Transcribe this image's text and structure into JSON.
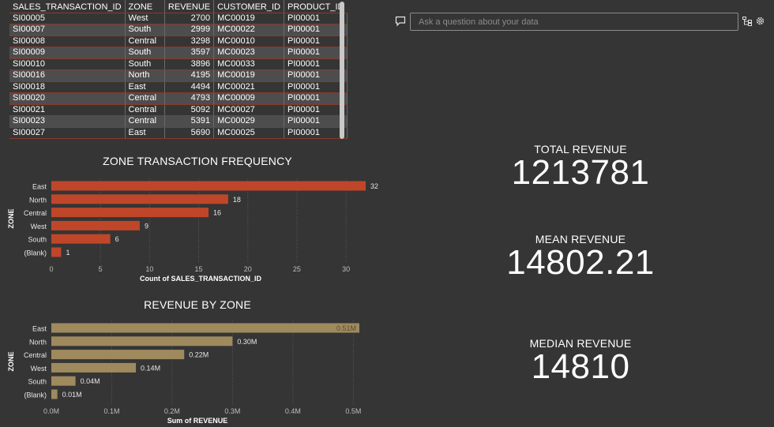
{
  "table": {
    "columns": [
      "SALES_TRANSACTION_ID",
      "ZONE",
      "REVENUE",
      "CUSTOMER_ID",
      "PRODUCT_ID"
    ],
    "rows": [
      [
        "SI00005",
        "West",
        "2700",
        "MC00019",
        "PI00001"
      ],
      [
        "SI00007",
        "South",
        "2999",
        "MC00022",
        "PI00001"
      ],
      [
        "SI00008",
        "Central",
        "3298",
        "MC00010",
        "PI00001"
      ],
      [
        "SI00009",
        "South",
        "3597",
        "MC00023",
        "PI00001"
      ],
      [
        "SI00010",
        "South",
        "3896",
        "MC00033",
        "PI00001"
      ],
      [
        "SI00016",
        "North",
        "4195",
        "MC00019",
        "PI00001"
      ],
      [
        "SI00018",
        "East",
        "4494",
        "MC00021",
        "PI00001"
      ],
      [
        "SI00020",
        "Central",
        "4793",
        "MC00009",
        "PI00001"
      ],
      [
        "SI00021",
        "Central",
        "5092",
        "MC00027",
        "PI00001"
      ],
      [
        "SI00023",
        "Central",
        "5391",
        "MC00029",
        "PI00001"
      ],
      [
        "SI00027",
        "East",
        "5690",
        "MC00025",
        "PI00001"
      ]
    ]
  },
  "qa": {
    "placeholder": "Ask a question about your data"
  },
  "kpis": {
    "total": {
      "label": "TOTAL REVENUE",
      "value": "1213781"
    },
    "mean": {
      "label": "MEAN REVENUE",
      "value": "14802.21"
    },
    "median": {
      "label": "MEDIAN REVENUE",
      "value": "14810"
    }
  },
  "chart_data": [
    {
      "type": "bar",
      "orientation": "horizontal",
      "title": "ZONE TRANSACTION FREQUENCY",
      "xlabel": "Count of SALES_TRANSACTION_ID",
      "ylabel": "ZONE",
      "categories": [
        "East",
        "North",
        "Central",
        "West",
        "South",
        "(Blank)"
      ],
      "values": [
        32,
        18,
        16,
        9,
        6,
        1
      ],
      "data_labels": [
        "32",
        "18",
        "16",
        "9",
        "6",
        "1"
      ],
      "xlim": [
        0,
        32
      ],
      "xticks": [
        0,
        5,
        10,
        15,
        20,
        25,
        30
      ],
      "xtick_labels": [
        "0",
        "5",
        "10",
        "15",
        "20",
        "25",
        "30"
      ],
      "bar_color": "#c0462a",
      "grid": true
    },
    {
      "type": "bar",
      "orientation": "horizontal",
      "title": "REVENUE BY ZONE",
      "xlabel": "Sum of REVENUE",
      "ylabel": "ZONE",
      "categories": [
        "East",
        "North",
        "Central",
        "West",
        "South",
        "(Blank)"
      ],
      "values": [
        510000,
        300000,
        220000,
        140000,
        40000,
        10000
      ],
      "data_labels": [
        "0.51M",
        "0.30M",
        "0.22M",
        "0.14M",
        "0.04M",
        "0.01M"
      ],
      "xlim": [
        0,
        510000
      ],
      "xticks": [
        0,
        100000,
        200000,
        300000,
        400000,
        500000
      ],
      "xtick_labels": [
        "0.0M",
        "0.1M",
        "0.2M",
        "0.3M",
        "0.4M",
        "0.5M"
      ],
      "bar_color": "#9f8a5e",
      "grid": true
    }
  ]
}
